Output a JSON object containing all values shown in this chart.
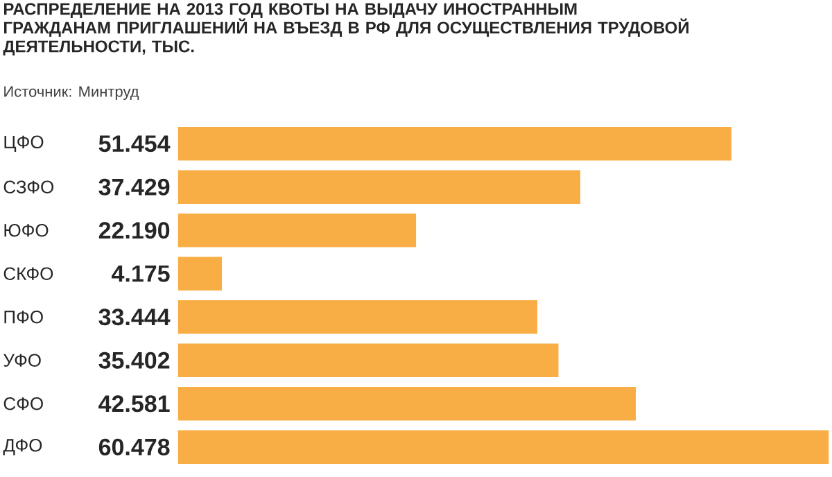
{
  "chart_data": {
    "type": "bar",
    "orientation": "horizontal",
    "title": "РАСПРЕДЕЛЕНИЕ НА 2013 ГОД КВОТЫ НА ВЫДАЧУ ИНОСТРАННЫМ ГРАЖДАНАМ ПРИГЛАШЕНИЙ НА ВЪЕЗД В РФ ДЛЯ ОСУЩЕСТВЛЕНИЯ ТРУДОВОЙ ДЕЯТЕЛЬНОСТИ, ТЫС.",
    "annotations": [
      "Источник: Минтруд"
    ],
    "categories": [
      "ЦФО",
      "СЗФО",
      "ЮФО",
      "СКФО",
      "ПФО",
      "УФО",
      "СФО",
      "ДФО"
    ],
    "values": [
      51.454,
      37.429,
      22.19,
      4.175,
      33.444,
      35.402,
      42.581,
      60.478
    ],
    "value_labels": [
      "51.454",
      "37.429",
      "22.190",
      "4.175",
      "33.444",
      "35.402",
      "42.581",
      "60.478"
    ],
    "color": "#f9ae45"
  }
}
